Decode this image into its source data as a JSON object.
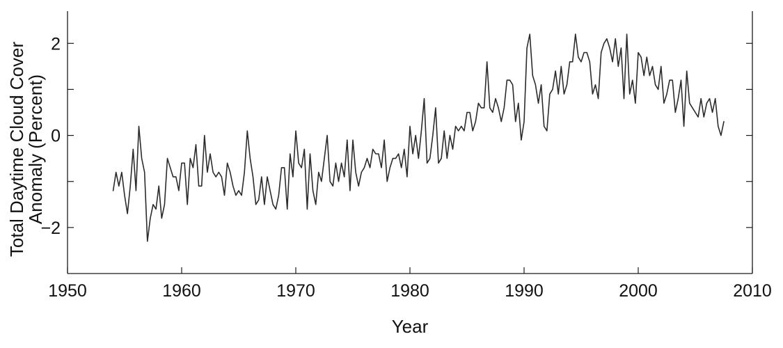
{
  "chart_data": {
    "type": "line",
    "title": "",
    "xlabel": "Year",
    "ylabel_lines": [
      "Total Daytime Cloud Cover",
      "Anomaly (Percent)"
    ],
    "xlim": [
      1950,
      2010
    ],
    "ylim": [
      -3,
      2.7
    ],
    "x_ticks": [
      1950,
      1960,
      1970,
      1980,
      1990,
      2000,
      2010
    ],
    "x_tick_labels": [
      "1950",
      "1960",
      "1970",
      "1980",
      "1990",
      "2000",
      "2010"
    ],
    "y_ticks": [
      -2,
      -1,
      0,
      1,
      2
    ],
    "y_tick_labels": [
      "−2",
      "",
      "0",
      "",
      "2"
    ],
    "grid": false,
    "line_color": "#2b2b2b",
    "series": [
      {
        "x_start": 1954.0,
        "x_step": 0.25,
        "values": [
          -1.2,
          -0.8,
          -1.1,
          -0.8,
          -1.3,
          -1.7,
          -1.1,
          -0.3,
          -1.2,
          0.2,
          -0.5,
          -0.8,
          -2.3,
          -1.8,
          -1.5,
          -1.6,
          -1.1,
          -1.8,
          -1.5,
          -0.5,
          -0.7,
          -0.9,
          -0.9,
          -1.2,
          -0.6,
          -0.6,
          -1.5,
          -0.5,
          -0.7,
          -0.2,
          -1.1,
          -1.1,
          0.0,
          -0.8,
          -0.4,
          -0.8,
          -0.9,
          -0.8,
          -0.9,
          -1.3,
          -0.6,
          -0.8,
          -1.1,
          -1.3,
          -1.2,
          -1.3,
          -0.8,
          0.1,
          -0.5,
          -0.9,
          -1.5,
          -1.4,
          -0.9,
          -1.5,
          -0.9,
          -1.2,
          -1.5,
          -1.6,
          -1.3,
          -0.7,
          -0.7,
          -1.6,
          -0.4,
          -0.9,
          0.1,
          -0.6,
          -0.7,
          -0.3,
          -1.6,
          -0.4,
          -1.2,
          -1.5,
          -0.8,
          -1.0,
          -0.5,
          0.0,
          -1.0,
          -1.1,
          -0.6,
          -1.0,
          -0.6,
          -0.9,
          -0.1,
          -1.2,
          -0.1,
          -0.8,
          -1.1,
          -0.8,
          -0.7,
          -0.5,
          -0.7,
          -0.3,
          -0.4,
          -0.4,
          -0.7,
          -0.1,
          -1.0,
          -0.7,
          -0.5,
          -0.5,
          -0.4,
          -0.7,
          -0.3,
          -0.9,
          0.2,
          -0.4,
          0.0,
          -0.5,
          0.1,
          0.8,
          -0.6,
          -0.5,
          0.0,
          0.6,
          -0.6,
          -0.5,
          0.1,
          -0.5,
          0.0,
          -0.3,
          0.2,
          0.1,
          0.2,
          0.1,
          0.5,
          0.5,
          0.1,
          0.3,
          0.7,
          0.6,
          0.6,
          1.6,
          0.6,
          0.5,
          0.8,
          0.6,
          0.3,
          0.6,
          1.2,
          1.2,
          1.1,
          0.3,
          0.7,
          -0.1,
          0.3,
          1.9,
          2.2,
          1.3,
          1.1,
          0.7,
          1.1,
          0.2,
          0.1,
          0.9,
          1.0,
          1.4,
          0.9,
          1.5,
          0.9,
          1.1,
          1.6,
          1.6,
          2.2,
          1.7,
          1.6,
          1.8,
          1.8,
          1.6,
          0.9,
          1.1,
          0.8,
          1.8,
          2.0,
          2.1,
          1.9,
          1.6,
          2.1,
          1.5,
          1.9,
          0.8,
          2.2,
          0.9,
          1.2,
          0.7,
          1.8,
          1.7,
          1.3,
          1.7,
          1.3,
          1.5,
          1.1,
          1.0,
          1.5,
          0.7,
          0.9,
          1.2,
          1.2,
          0.5,
          0.8,
          1.2,
          0.2,
          1.4,
          0.7,
          0.6,
          0.5,
          0.4,
          0.8,
          0.4,
          0.7,
          0.8,
          0.5,
          0.8,
          0.2,
          0.0,
          0.3
        ]
      }
    ]
  }
}
